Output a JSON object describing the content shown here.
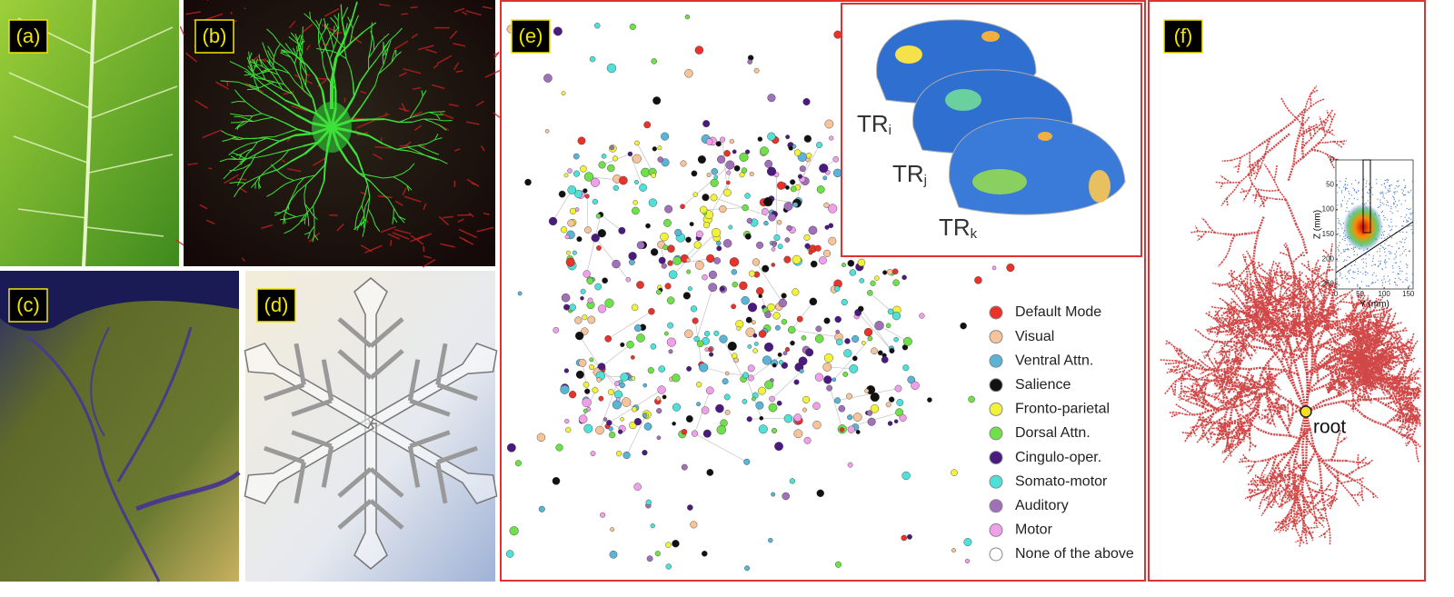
{
  "panels": [
    {
      "label": "(a)"
    },
    {
      "label": "(b)"
    },
    {
      "label": "(c)"
    },
    {
      "label": "(d)"
    },
    {
      "label": "(e)"
    },
    {
      "label": "(f)"
    }
  ],
  "brain_inset": {
    "labels": [
      {
        "base": "TR",
        "sub": "i"
      },
      {
        "base": "TR",
        "sub": "j"
      },
      {
        "base": "TR",
        "sub": "k"
      }
    ]
  },
  "legend": {
    "items": [
      {
        "name": "Default Mode",
        "color": "#e8332a"
      },
      {
        "name": "Visual",
        "color": "#f5c49a"
      },
      {
        "name": "Ventral Attn.",
        "color": "#5ab4d6"
      },
      {
        "name": "Salience",
        "color": "#111111"
      },
      {
        "name": "Fronto-parietal",
        "color": "#f2f23a"
      },
      {
        "name": "Dorsal Attn.",
        "color": "#6fe04a"
      },
      {
        "name": "Cingulo-oper.",
        "color": "#4b1a7e"
      },
      {
        "name": "Somato-motor",
        "color": "#4fe0d8"
      },
      {
        "name": "Auditory",
        "color": "#a070b8"
      },
      {
        "name": "Motor",
        "color": "#f0a0e8"
      },
      {
        "name": "None of the above",
        "color": "#ffffff"
      }
    ]
  },
  "tree": {
    "root_label": "root"
  },
  "density_inset": {
    "x_label": "Y (mm)",
    "y_label": "Z (mm)",
    "xticks": [
      0,
      50,
      100,
      150
    ],
    "yticks": [
      0,
      50,
      100,
      150,
      200,
      250
    ],
    "xlim": [
      0,
      160
    ],
    "ylim": [
      0,
      260
    ]
  }
}
